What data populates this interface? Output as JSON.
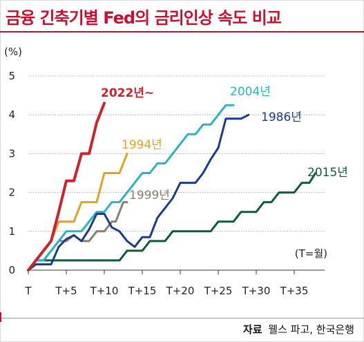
{
  "header": {
    "title": "금융 긴축기별 Fed의 금리인상 속도 비교"
  },
  "footer": {
    "source_label": "자료",
    "source_text": "웰스 파고, 한국은행"
  },
  "chart_data": {
    "type": "line",
    "title": "금융 긴축기별 Fed의 금리인상 속도 비교",
    "ylabel": "(%)",
    "note": "(T=월)",
    "xlim": [
      0,
      39
    ],
    "ylim": [
      0,
      5
    ],
    "x_ticks": [
      {
        "value": 0,
        "label": "T"
      },
      {
        "value": 5,
        "label": "T+5"
      },
      {
        "value": 10,
        "label": "T+10"
      },
      {
        "value": 15,
        "label": "T+15"
      },
      {
        "value": 20,
        "label": "T+20"
      },
      {
        "value": 25,
        "label": "T+25"
      },
      {
        "value": 30,
        "label": "T+30"
      },
      {
        "value": 35,
        "label": "T+35"
      }
    ],
    "y_ticks": [
      0,
      1,
      2,
      3,
      4,
      5
    ],
    "grid": "horizontal",
    "series": [
      {
        "name": "2015년",
        "color": "#0e5a3c",
        "points": [
          [
            0,
            0
          ],
          [
            1,
            0.25
          ],
          [
            12,
            0.25
          ],
          [
            13,
            0.5
          ],
          [
            15,
            0.5
          ],
          [
            16,
            0.75
          ],
          [
            18,
            0.75
          ],
          [
            19,
            1
          ],
          [
            24,
            1
          ],
          [
            25,
            1.25
          ],
          [
            27,
            1.25
          ],
          [
            28,
            1.5
          ],
          [
            30,
            1.5
          ],
          [
            31,
            1.75
          ],
          [
            32,
            1.75
          ],
          [
            33,
            2
          ],
          [
            34,
            2
          ],
          [
            35,
            2
          ],
          [
            36,
            2.25
          ],
          [
            37,
            2.25
          ],
          [
            37.8,
            2.5
          ]
        ]
      },
      {
        "name": "1999년",
        "color": "#8a7f72",
        "points": [
          [
            0,
            0
          ],
          [
            1,
            0.25
          ],
          [
            2,
            0.25
          ],
          [
            3,
            0.5
          ],
          [
            4,
            0.75
          ],
          [
            5,
            0.75
          ],
          [
            6,
            0.9
          ],
          [
            7,
            0.75
          ],
          [
            8,
            0.75
          ],
          [
            9,
            1.0
          ],
          [
            10,
            1.0
          ],
          [
            11,
            1.25
          ],
          [
            11.5,
            1.25
          ],
          [
            12,
            1.5
          ],
          [
            12.5,
            1.75
          ],
          [
            13,
            1.75
          ]
        ]
      },
      {
        "name": "1994년",
        "color": "#e6a020",
        "points": [
          [
            0,
            0
          ],
          [
            1,
            0.25
          ],
          [
            2,
            0.5
          ],
          [
            3,
            0.75
          ],
          [
            4,
            1.25
          ],
          [
            6,
            1.25
          ],
          [
            7,
            1.75
          ],
          [
            9,
            1.75
          ],
          [
            10,
            2.5
          ],
          [
            12,
            2.5
          ],
          [
            13,
            3.0
          ]
        ]
      },
      {
        "name": "2004년",
        "color": "#2ab3c0",
        "points": [
          [
            0,
            0
          ],
          [
            1,
            0.25
          ],
          [
            2,
            0.25
          ],
          [
            3,
            0.5
          ],
          [
            4,
            0.75
          ],
          [
            5,
            1.0
          ],
          [
            7,
            1.0
          ],
          [
            8,
            1.25
          ],
          [
            9,
            1.5
          ],
          [
            10,
            1.5
          ],
          [
            11,
            1.75
          ],
          [
            12,
            1.75
          ],
          [
            13,
            2.0
          ],
          [
            14,
            2.25
          ],
          [
            15,
            2.5
          ],
          [
            16,
            2.5
          ],
          [
            17,
            2.75
          ],
          [
            18,
            2.75
          ],
          [
            19,
            3.0
          ],
          [
            20,
            3.25
          ],
          [
            21,
            3.5
          ],
          [
            22,
            3.5
          ],
          [
            23,
            3.75
          ],
          [
            24,
            3.75
          ],
          [
            25,
            4.0
          ],
          [
            26,
            4.25
          ],
          [
            27,
            4.25
          ]
        ]
      },
      {
        "name": "1986년",
        "color": "#1a3a8c",
        "points": [
          [
            0,
            0
          ],
          [
            1,
            0.15
          ],
          [
            3,
            0.15
          ],
          [
            4,
            0.6
          ],
          [
            5,
            0.8
          ],
          [
            6,
            0.9
          ],
          [
            7,
            0.75
          ],
          [
            8,
            1.05
          ],
          [
            9,
            1.45
          ],
          [
            10,
            1.45
          ],
          [
            11,
            1.1
          ],
          [
            12,
            1.0
          ],
          [
            13,
            0.75
          ],
          [
            14,
            0.6
          ],
          [
            15,
            0.85
          ],
          [
            16,
            0.85
          ],
          [
            17,
            1.35
          ],
          [
            18,
            1.6
          ],
          [
            19,
            1.85
          ],
          [
            20,
            2.25
          ],
          [
            22,
            2.25
          ],
          [
            23,
            2.5
          ],
          [
            24,
            2.85
          ],
          [
            25,
            3.15
          ],
          [
            26,
            3.9
          ],
          [
            28,
            3.9
          ],
          [
            29,
            4.0
          ]
        ]
      },
      {
        "name": "2022년~",
        "color": "#cc2229",
        "points": [
          [
            0,
            0
          ],
          [
            1,
            0.25
          ],
          [
            2,
            0.5
          ],
          [
            3,
            0.75
          ],
          [
            4,
            1.5
          ],
          [
            5,
            2.3
          ],
          [
            6,
            2.3
          ],
          [
            7,
            3.0
          ],
          [
            8,
            3.0
          ],
          [
            9,
            3.8
          ],
          [
            10,
            4.3
          ]
        ]
      }
    ]
  }
}
